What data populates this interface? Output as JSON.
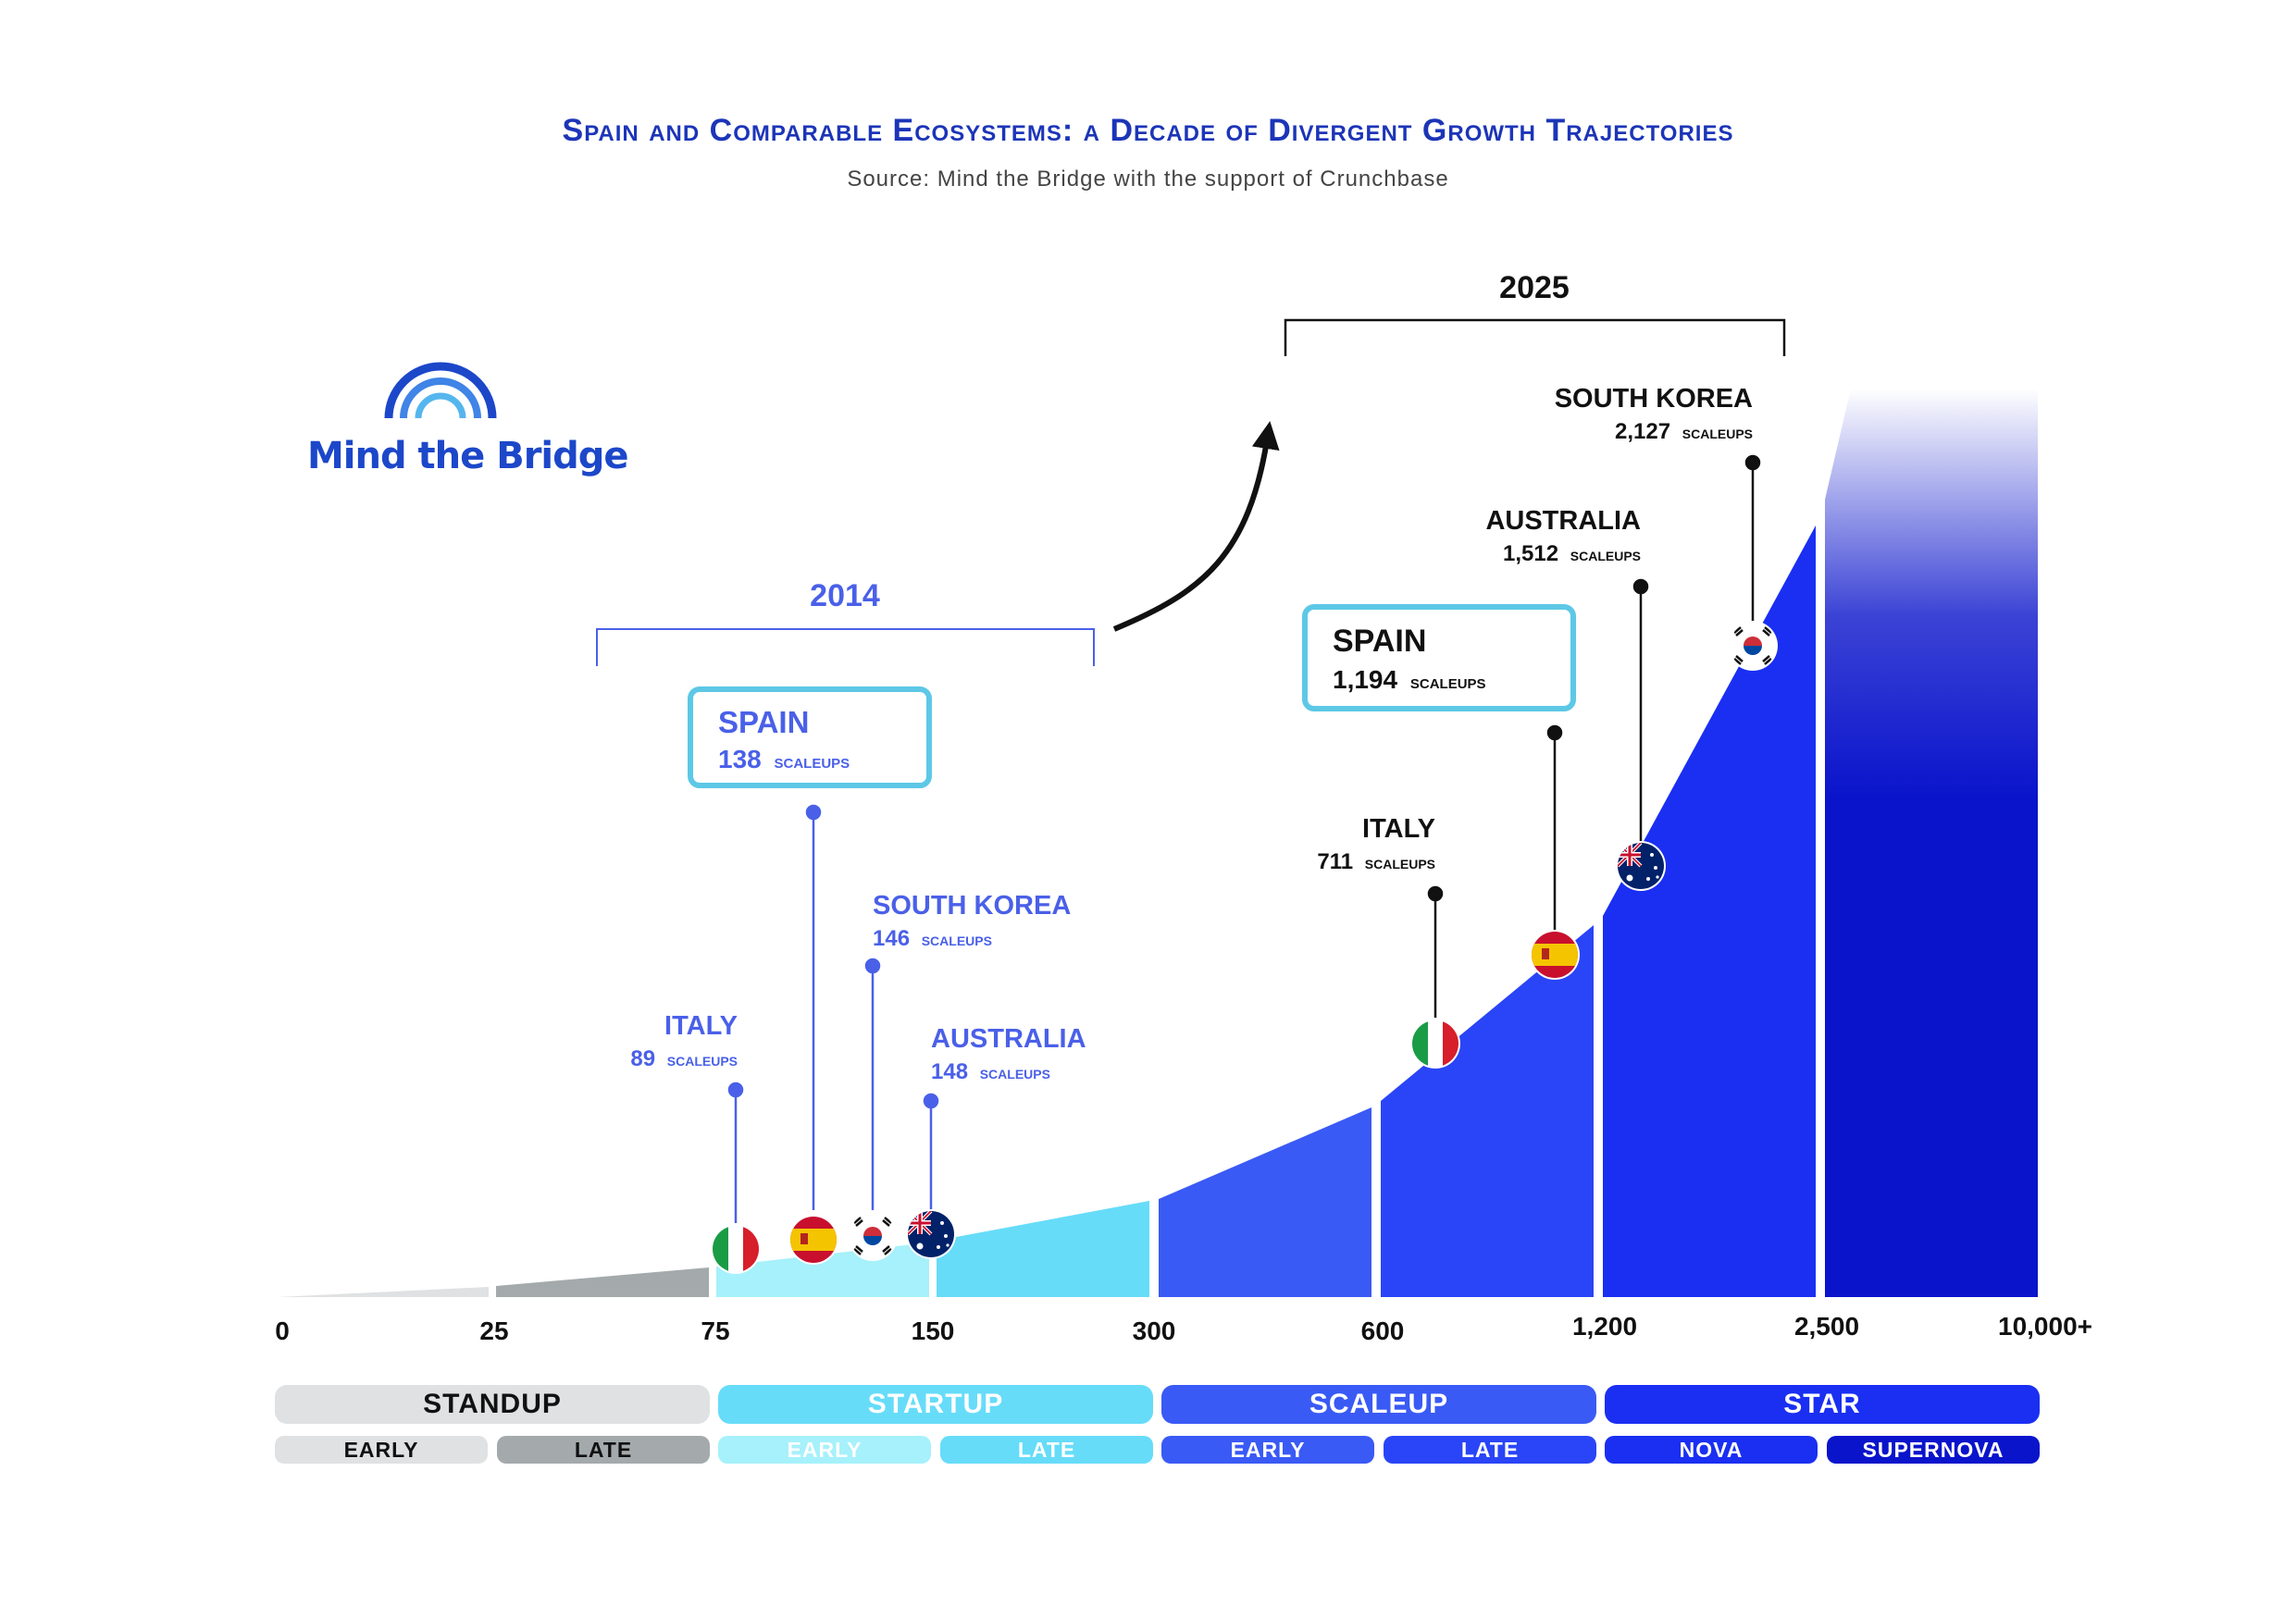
{
  "title": "Spain and Comparable Ecosystems: a Decade of Divergent Growth Trajectories",
  "subtitle": "Source: Mind the Bridge with the support of Crunchbase",
  "logo": {
    "text": "Mind the Bridge"
  },
  "colors": {
    "title": "#1c35b8",
    "year_2014": "#4a60e8",
    "year_2025": "#111111",
    "box_border": "#5dc8e6",
    "standup_early": "#dfe1e2",
    "standup_late": "#a4aaab",
    "startup_early": "#a6f1fb",
    "startup_late": "#66dcf9",
    "scaleup_early": "#3a5af5",
    "scaleup_late": "#2a45f7",
    "star_nova": "#1a2ff2",
    "star_supernova": "#0a14cb"
  },
  "chart_data": {
    "type": "area",
    "title": "Spain and Comparable Ecosystems: a Decade of Divergent Growth Trajectories",
    "x_scale": "categorical thresholds",
    "x_ticks": [
      "0",
      "25",
      "75",
      "150",
      "300",
      "600",
      "1,200",
      "2,500",
      "10,000+"
    ],
    "stages": [
      {
        "name": "STANDUP",
        "sub": [
          "EARLY",
          "LATE"
        ],
        "range": [
          "0",
          "75"
        ]
      },
      {
        "name": "STARTUP",
        "sub": [
          "EARLY",
          "LATE"
        ],
        "range": [
          "75",
          "300"
        ]
      },
      {
        "name": "SCALEUP",
        "sub": [
          "EARLY",
          "LATE"
        ],
        "range": [
          "300",
          "1,200"
        ]
      },
      {
        "name": "STAR",
        "sub": [
          "NOVA",
          "SUPERNOVA"
        ],
        "range": [
          "1,200",
          "10,000+"
        ]
      }
    ],
    "series": [
      {
        "name": "2014",
        "points": [
          {
            "country": "ITALY",
            "value": 89,
            "label": "89 scaleups"
          },
          {
            "country": "SPAIN",
            "value": 138,
            "label": "138 scaleups",
            "highlight": true
          },
          {
            "country": "SOUTH KOREA",
            "value": 146,
            "label": "146 scaleups"
          },
          {
            "country": "AUSTRALIA",
            "value": 148,
            "label": "148 scaleups"
          }
        ]
      },
      {
        "name": "2025",
        "points": [
          {
            "country": "ITALY",
            "value": 711,
            "label": "711 scaleups"
          },
          {
            "country": "SPAIN",
            "value": 1194,
            "label": "1,194 scaleups",
            "highlight": true
          },
          {
            "country": "AUSTRALIA",
            "value": 1512,
            "label": "1,512 scaleups"
          },
          {
            "country": "SOUTH KOREA",
            "value": 2127,
            "label": "2,127 scaleups"
          }
        ]
      }
    ],
    "annotations": [
      "2014",
      "2025"
    ]
  },
  "labels": {
    "y2014": "2014",
    "y2025": "2025",
    "p2014": {
      "italy": {
        "name": "ITALY",
        "count": "89",
        "unit": "scaleups"
      },
      "spain": {
        "name": "SPAIN",
        "count": "138",
        "unit": "scaleups"
      },
      "korea": {
        "name": "SOUTH KOREA",
        "count": "146",
        "unit": "scaleups"
      },
      "australia": {
        "name": "AUSTRALIA",
        "count": "148",
        "unit": "scaleups"
      }
    },
    "p2025": {
      "italy": {
        "name": "ITALY",
        "count": "711",
        "unit": "scaleups"
      },
      "spain": {
        "name": "SPAIN",
        "count": "1,194",
        "unit": "scaleups"
      },
      "australia": {
        "name": "AUSTRALIA",
        "count": "1,512",
        "unit": "scaleups"
      },
      "korea": {
        "name": "SOUTH KOREA",
        "count": "2,127",
        "unit": "scaleups"
      }
    }
  },
  "stage_bars": {
    "standup": "STANDUP",
    "startup": "STARTUP",
    "scaleup": "SCALEUP",
    "star": "STAR",
    "standup_early": "EARLY",
    "standup_late": "LATE",
    "startup_early": "EARLY",
    "startup_late": "LATE",
    "scaleup_early": "EARLY",
    "scaleup_late": "LATE",
    "star_nova": "NOVA",
    "star_supernova": "SUPERNOVA"
  },
  "flags": {
    "italy": "italy-flag-icon",
    "spain": "spain-flag-icon",
    "korea": "south-korea-flag-icon",
    "australia": "australia-flag-icon"
  }
}
